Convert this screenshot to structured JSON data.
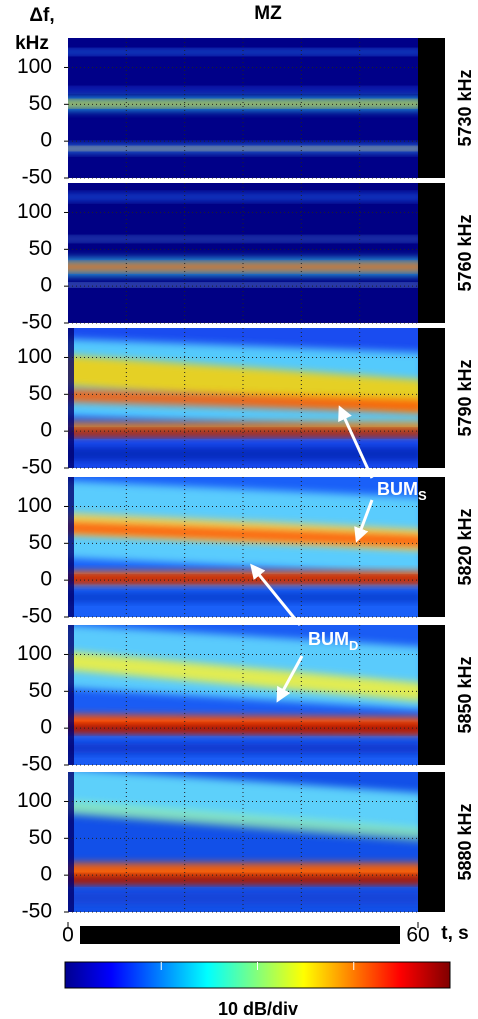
{
  "figure": {
    "title": "MZ",
    "ylabel_line1": "Δf,",
    "ylabel_line2": "kHz",
    "xlabel": "t, s",
    "xlim": [
      0,
      60
    ],
    "xticks": [
      0,
      60
    ],
    "colorbar_label": "10 dB/div",
    "annotations": [
      {
        "text": "BUM",
        "sub": "S"
      },
      {
        "text": "BUM",
        "sub": "D"
      }
    ]
  },
  "chart_data": [
    {
      "type": "spectrogram",
      "label": "5730 kHz",
      "ylim": [
        -50,
        140
      ],
      "yticks": [
        -50,
        0,
        50,
        100
      ]
    },
    {
      "type": "spectrogram",
      "label": "5760 kHz",
      "ylim": [
        -50,
        140
      ],
      "yticks": [
        -50,
        0,
        50,
        100
      ]
    },
    {
      "type": "spectrogram",
      "label": "5790 kHz",
      "ylim": [
        -50,
        140
      ],
      "yticks": [
        -50,
        0,
        50,
        100
      ]
    },
    {
      "type": "spectrogram",
      "label": "5820 kHz",
      "ylim": [
        -50,
        140
      ],
      "yticks": [
        -50,
        0,
        50,
        100
      ]
    },
    {
      "type": "spectrogram",
      "label": "5850 kHz",
      "ylim": [
        -50,
        140
      ],
      "yticks": [
        -50,
        0,
        50,
        100
      ]
    },
    {
      "type": "spectrogram",
      "label": "5880 kHz",
      "ylim": [
        -50,
        140
      ],
      "yticks": [
        -50,
        0,
        50,
        100
      ]
    }
  ]
}
